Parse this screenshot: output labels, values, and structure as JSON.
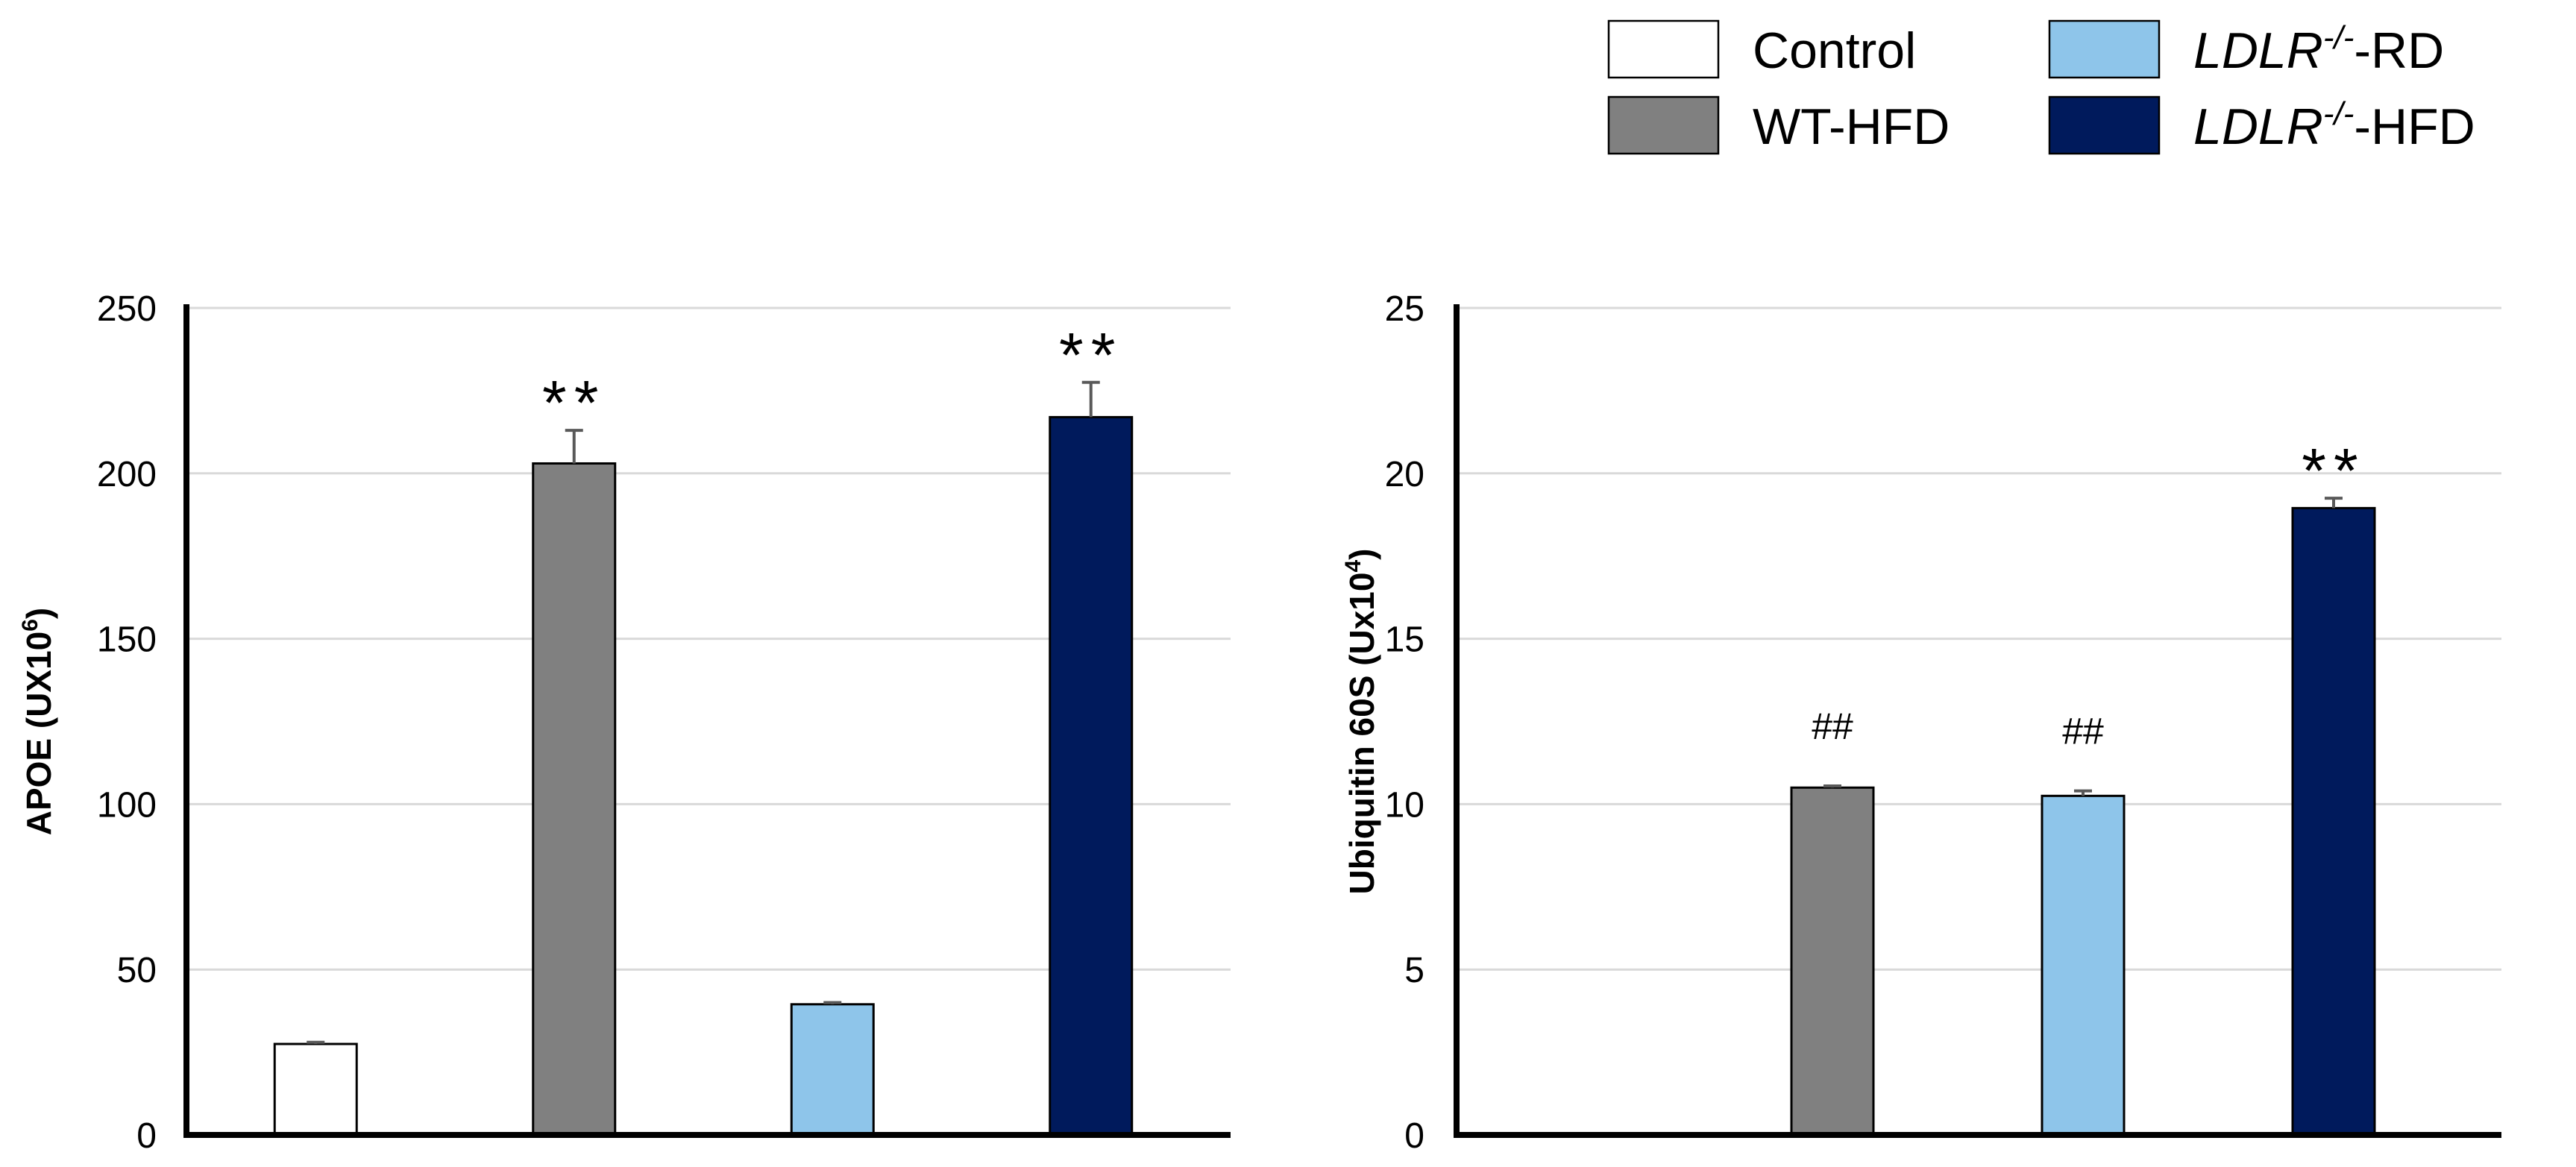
{
  "legend": {
    "entries": [
      {
        "name": "Control",
        "italic": "",
        "sup": "",
        "rest": "",
        "color": "#ffffff"
      },
      {
        "name": "LDLR-/--RD",
        "italic": "LDLR",
        "sup": "-/-",
        "rest": "-RD",
        "color": "#8ec5ea"
      },
      {
        "name": "WT-HFD",
        "italic": "",
        "sup": "",
        "rest": "",
        "color": "#808080"
      },
      {
        "name": "LDLR-/--HFD",
        "italic": "LDLR",
        "sup": "-/-",
        "rest": "-HFD",
        "color": "#001a5c"
      }
    ]
  },
  "chart_data": [
    {
      "type": "bar",
      "title": "",
      "xlabel": "",
      "ylabel": "APOE (UX10",
      "ylabel_sup": "6",
      "ylabel_end": ")",
      "ylim": [
        0,
        250
      ],
      "yticks": [
        0,
        50,
        100,
        150,
        200,
        250
      ],
      "grid": true,
      "categories": [
        "Control",
        "WT-HFD",
        "LDLR-/--RD",
        "LDLR-/--HFD"
      ],
      "colors": [
        "#ffffff",
        "#808080",
        "#8ec5ea",
        "#001a5c"
      ],
      "values": [
        27.5,
        203,
        39.5,
        217
      ],
      "errors": [
        0.5,
        10,
        0.5,
        10.5
      ],
      "annotations": [
        "",
        "**",
        "",
        "**"
      ]
    },
    {
      "type": "bar",
      "title": "",
      "xlabel": "",
      "ylabel": "Ubiquitin 60S (Ux10",
      "ylabel_sup": "4",
      "ylabel_end": ")",
      "ylim": [
        0,
        25
      ],
      "yticks": [
        0,
        5,
        10,
        15,
        20,
        25
      ],
      "grid": true,
      "categories": [
        "Control",
        "WT-HFD",
        "LDLR-/--RD",
        "LDLR-/--HFD"
      ],
      "colors": [
        "#ffffff",
        "#808080",
        "#8ec5ea",
        "#001a5c"
      ],
      "values": [
        0,
        10.5,
        10.25,
        18.95
      ],
      "errors": [
        0,
        0.05,
        0.15,
        0.3
      ],
      "annotations": [
        "",
        "##",
        "##",
        "**"
      ]
    }
  ]
}
